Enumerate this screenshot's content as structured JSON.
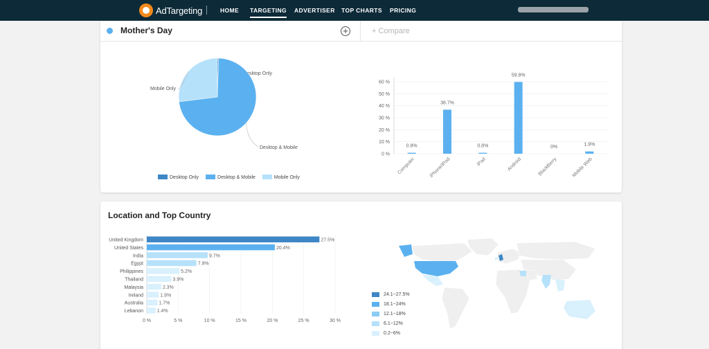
{
  "brand": {
    "name": "AdTargeting"
  },
  "nav": {
    "items": [
      {
        "label": "HOME",
        "active": false
      },
      {
        "label": "TARGETING",
        "active": true
      },
      {
        "label": "ADVERTISER",
        "active": false
      },
      {
        "label": "TOP CHARTS",
        "active": false
      },
      {
        "label": "PRICING",
        "active": false
      }
    ]
  },
  "segment": {
    "title": "Mother's Day",
    "compare_label": "+ Compare"
  },
  "location": {
    "title": "Location and Top Country"
  },
  "colors": {
    "nav_bg": "#0d2a38",
    "dark_blue": "#3d87c6",
    "mid_blue": "#5bb1ef",
    "light_blue": "#b6e1fb",
    "lighter_blue": "#d9f0fd",
    "logo_orange": "#f28a1c"
  },
  "chart_data": [
    {
      "type": "pie",
      "labels": [
        "Desktop Only",
        "Desktop & Mobile",
        "Mobile Only"
      ],
      "values": [
        0.5,
        72.5,
        27
      ],
      "colors": [
        "#3d87c6",
        "#5bb1ef",
        "#b6e1fb"
      ],
      "legend": [
        "Desktop Only",
        "Desktop & Mobile",
        "Mobile Only"
      ],
      "legend_position": "bottom"
    },
    {
      "type": "bar",
      "categories": [
        "Computer",
        "iPhone/iPod",
        "iPad",
        "Android",
        "BlackBerry",
        "Mobile Web"
      ],
      "values": [
        0.8,
        36.7,
        0.8,
        59.8,
        0,
        1.9
      ],
      "data_labels": [
        "0.8%",
        "36.7%",
        "0.8%",
        "59.8%",
        "0%",
        "1.9%"
      ],
      "yticks": [
        "0 %",
        "10 %",
        "20 %",
        "30 %",
        "40 %",
        "50 %",
        "60 %"
      ],
      "ylim": [
        0,
        60
      ]
    },
    {
      "type": "bar",
      "orientation": "horizontal",
      "categories": [
        "United Kingdom",
        "United States",
        "India",
        "Egypt",
        "Philippines",
        "Thailand",
        "Malaysia",
        "Ireland",
        "Australia",
        "Lebanon"
      ],
      "values": [
        27.5,
        20.4,
        9.7,
        7.9,
        5.2,
        3.9,
        2.3,
        1.9,
        1.7,
        1.4
      ],
      "data_labels": [
        "27.5%",
        "20.4%",
        "9.7%",
        "7.9%",
        "5.2%",
        "3.9%",
        "2.3%",
        "1.9%",
        "1.7%",
        "1.4%"
      ],
      "xticks": [
        "0 %",
        "5 %",
        "10 %",
        "15 %",
        "20 %",
        "25 %",
        "30 %"
      ],
      "xlim": [
        0,
        30
      ]
    }
  ],
  "map_legend": [
    {
      "label": "24.1~27.5%",
      "color": "#3d87c6"
    },
    {
      "label": "18.1~24%",
      "color": "#5bb1ef"
    },
    {
      "label": "12.1~18%",
      "color": "#8ccdf5"
    },
    {
      "label": "6.1~12%",
      "color": "#b6e1fb"
    },
    {
      "label": "0.2~6%",
      "color": "#d9f0fd"
    }
  ]
}
